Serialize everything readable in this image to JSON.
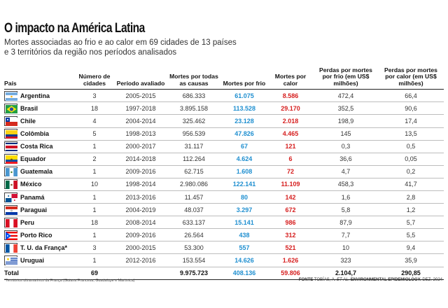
{
  "title": "O impacto na América Latina",
  "subtitle_line1": "Mortes associadas ao frio e ao calor em 69 cidades de 13 países",
  "subtitle_line2": "e 3 territórios da região nos períodos analisados",
  "headers": {
    "pais": "País",
    "cidades": "Número de cidades",
    "periodo": "Período avaliado",
    "todas": "Mortes por todas as causas",
    "frio": "Mortes por frio",
    "calor": "Mortes por calor",
    "perdas_frio": "Perdas por mortes por frio (em US$ milhões)",
    "perdas_calor": "Perdas por mortes por calor (em US$ milhões)"
  },
  "colors": {
    "cold": "#1f8fd0",
    "heat": "#d61f1f"
  },
  "rows": [
    {
      "country": "Argentina",
      "flag": "argentina-flag-icon",
      "cities": "3",
      "period": "2005-2015",
      "all": "686.333",
      "cold": "61.075",
      "heat": "8.586",
      "loss_cold": "472,4",
      "loss_heat": "66,4"
    },
    {
      "country": "Brasil",
      "flag": "brazil-flag-icon",
      "cities": "18",
      "period": "1997-2018",
      "all": "3.895.158",
      "cold": "113.528",
      "heat": "29.170",
      "loss_cold": "352,5",
      "loss_heat": "90,6"
    },
    {
      "country": "Chile",
      "flag": "chile-flag-icon",
      "cities": "4",
      "period": "2004-2014",
      "all": "325.462",
      "cold": "23.128",
      "heat": "2.018",
      "loss_cold": "198,9",
      "loss_heat": "17,4"
    },
    {
      "country": "Colômbia",
      "flag": "colombia-flag-icon",
      "cities": "5",
      "period": "1998-2013",
      "all": "956.539",
      "cold": "47.826",
      "heat": "4.465",
      "loss_cold": "145",
      "loss_heat": "13,5"
    },
    {
      "country": "Costa Rica",
      "flag": "costa-rica-flag-icon",
      "cities": "1",
      "period": "2000-2017",
      "all": "31.117",
      "cold": "67",
      "heat": "121",
      "loss_cold": "0,3",
      "loss_heat": "0,5"
    },
    {
      "country": "Equador",
      "flag": "ecuador-flag-icon",
      "cities": "2",
      "period": "2014-2018",
      "all": "112.264",
      "cold": "4.624",
      "heat": "6",
      "loss_cold": "36,6",
      "loss_heat": "0,05"
    },
    {
      "country": "Guatemala",
      "flag": "guatemala-flag-icon",
      "cities": "1",
      "period": "2009-2016",
      "all": "62.715",
      "cold": "1.608",
      "heat": "72",
      "loss_cold": "4,7",
      "loss_heat": "0,2"
    },
    {
      "country": "México",
      "flag": "mexico-flag-icon",
      "cities": "10",
      "period": "1998-2014",
      "all": "2.980.086",
      "cold": "122.141",
      "heat": "11.109",
      "loss_cold": "458,3",
      "loss_heat": "41,7"
    },
    {
      "country": "Panamá",
      "flag": "panama-flag-icon",
      "cities": "1",
      "period": "2013-2016",
      "all": "11.457",
      "cold": "80",
      "heat": "142",
      "loss_cold": "1,6",
      "loss_heat": "2,8"
    },
    {
      "country": "Paraguai",
      "flag": "paraguay-flag-icon",
      "cities": "1",
      "period": "2004-2019",
      "all": "48.037",
      "cold": "3.297",
      "heat": "672",
      "loss_cold": "5,8",
      "loss_heat": "1,2"
    },
    {
      "country": "Peru",
      "flag": "peru-flag-icon",
      "cities": "18",
      "period": "2008-2014",
      "all": "633.137",
      "cold": "15.141",
      "heat": "986",
      "loss_cold": "87,9",
      "loss_heat": "5,7"
    },
    {
      "country": "Porto Rico",
      "flag": "puerto-rico-flag-icon",
      "cities": "1",
      "period": "2009-2016",
      "all": "26.564",
      "cold": "438",
      "heat": "312",
      "loss_cold": "7,7",
      "loss_heat": "5,5"
    },
    {
      "country": "T. U. da França*",
      "flag": "france-flag-icon",
      "cities": "3",
      "period": "2000-2015",
      "all": "53.300",
      "cold": "557",
      "heat": "521",
      "loss_cold": "10",
      "loss_heat": "9,4"
    },
    {
      "country": "Uruguai",
      "flag": "uruguay-flag-icon",
      "cities": "1",
      "period": "2012-2016",
      "all": "153.554",
      "cold": "14.626",
      "heat": "1.626",
      "loss_cold": "323",
      "loss_heat": "35,9"
    }
  ],
  "total": {
    "label": "Total",
    "cities": "69",
    "period": "",
    "all": "9.975.723",
    "cold": "408.136",
    "heat": "59.806",
    "loss_cold": "2.104,7",
    "loss_heat": "290,85"
  },
  "footnote": "*Territórios ultramarinos da França (Guiana Francesa, Guadalupe e Martinica)",
  "source": {
    "label": "FONTE",
    "authors": "TOBÍAS, A.",
    "etal": "ET AL.",
    "journal": "ENVIRONMENTAL EPIDEMIOLOGY.",
    "date": "DEZ. 2024"
  }
}
